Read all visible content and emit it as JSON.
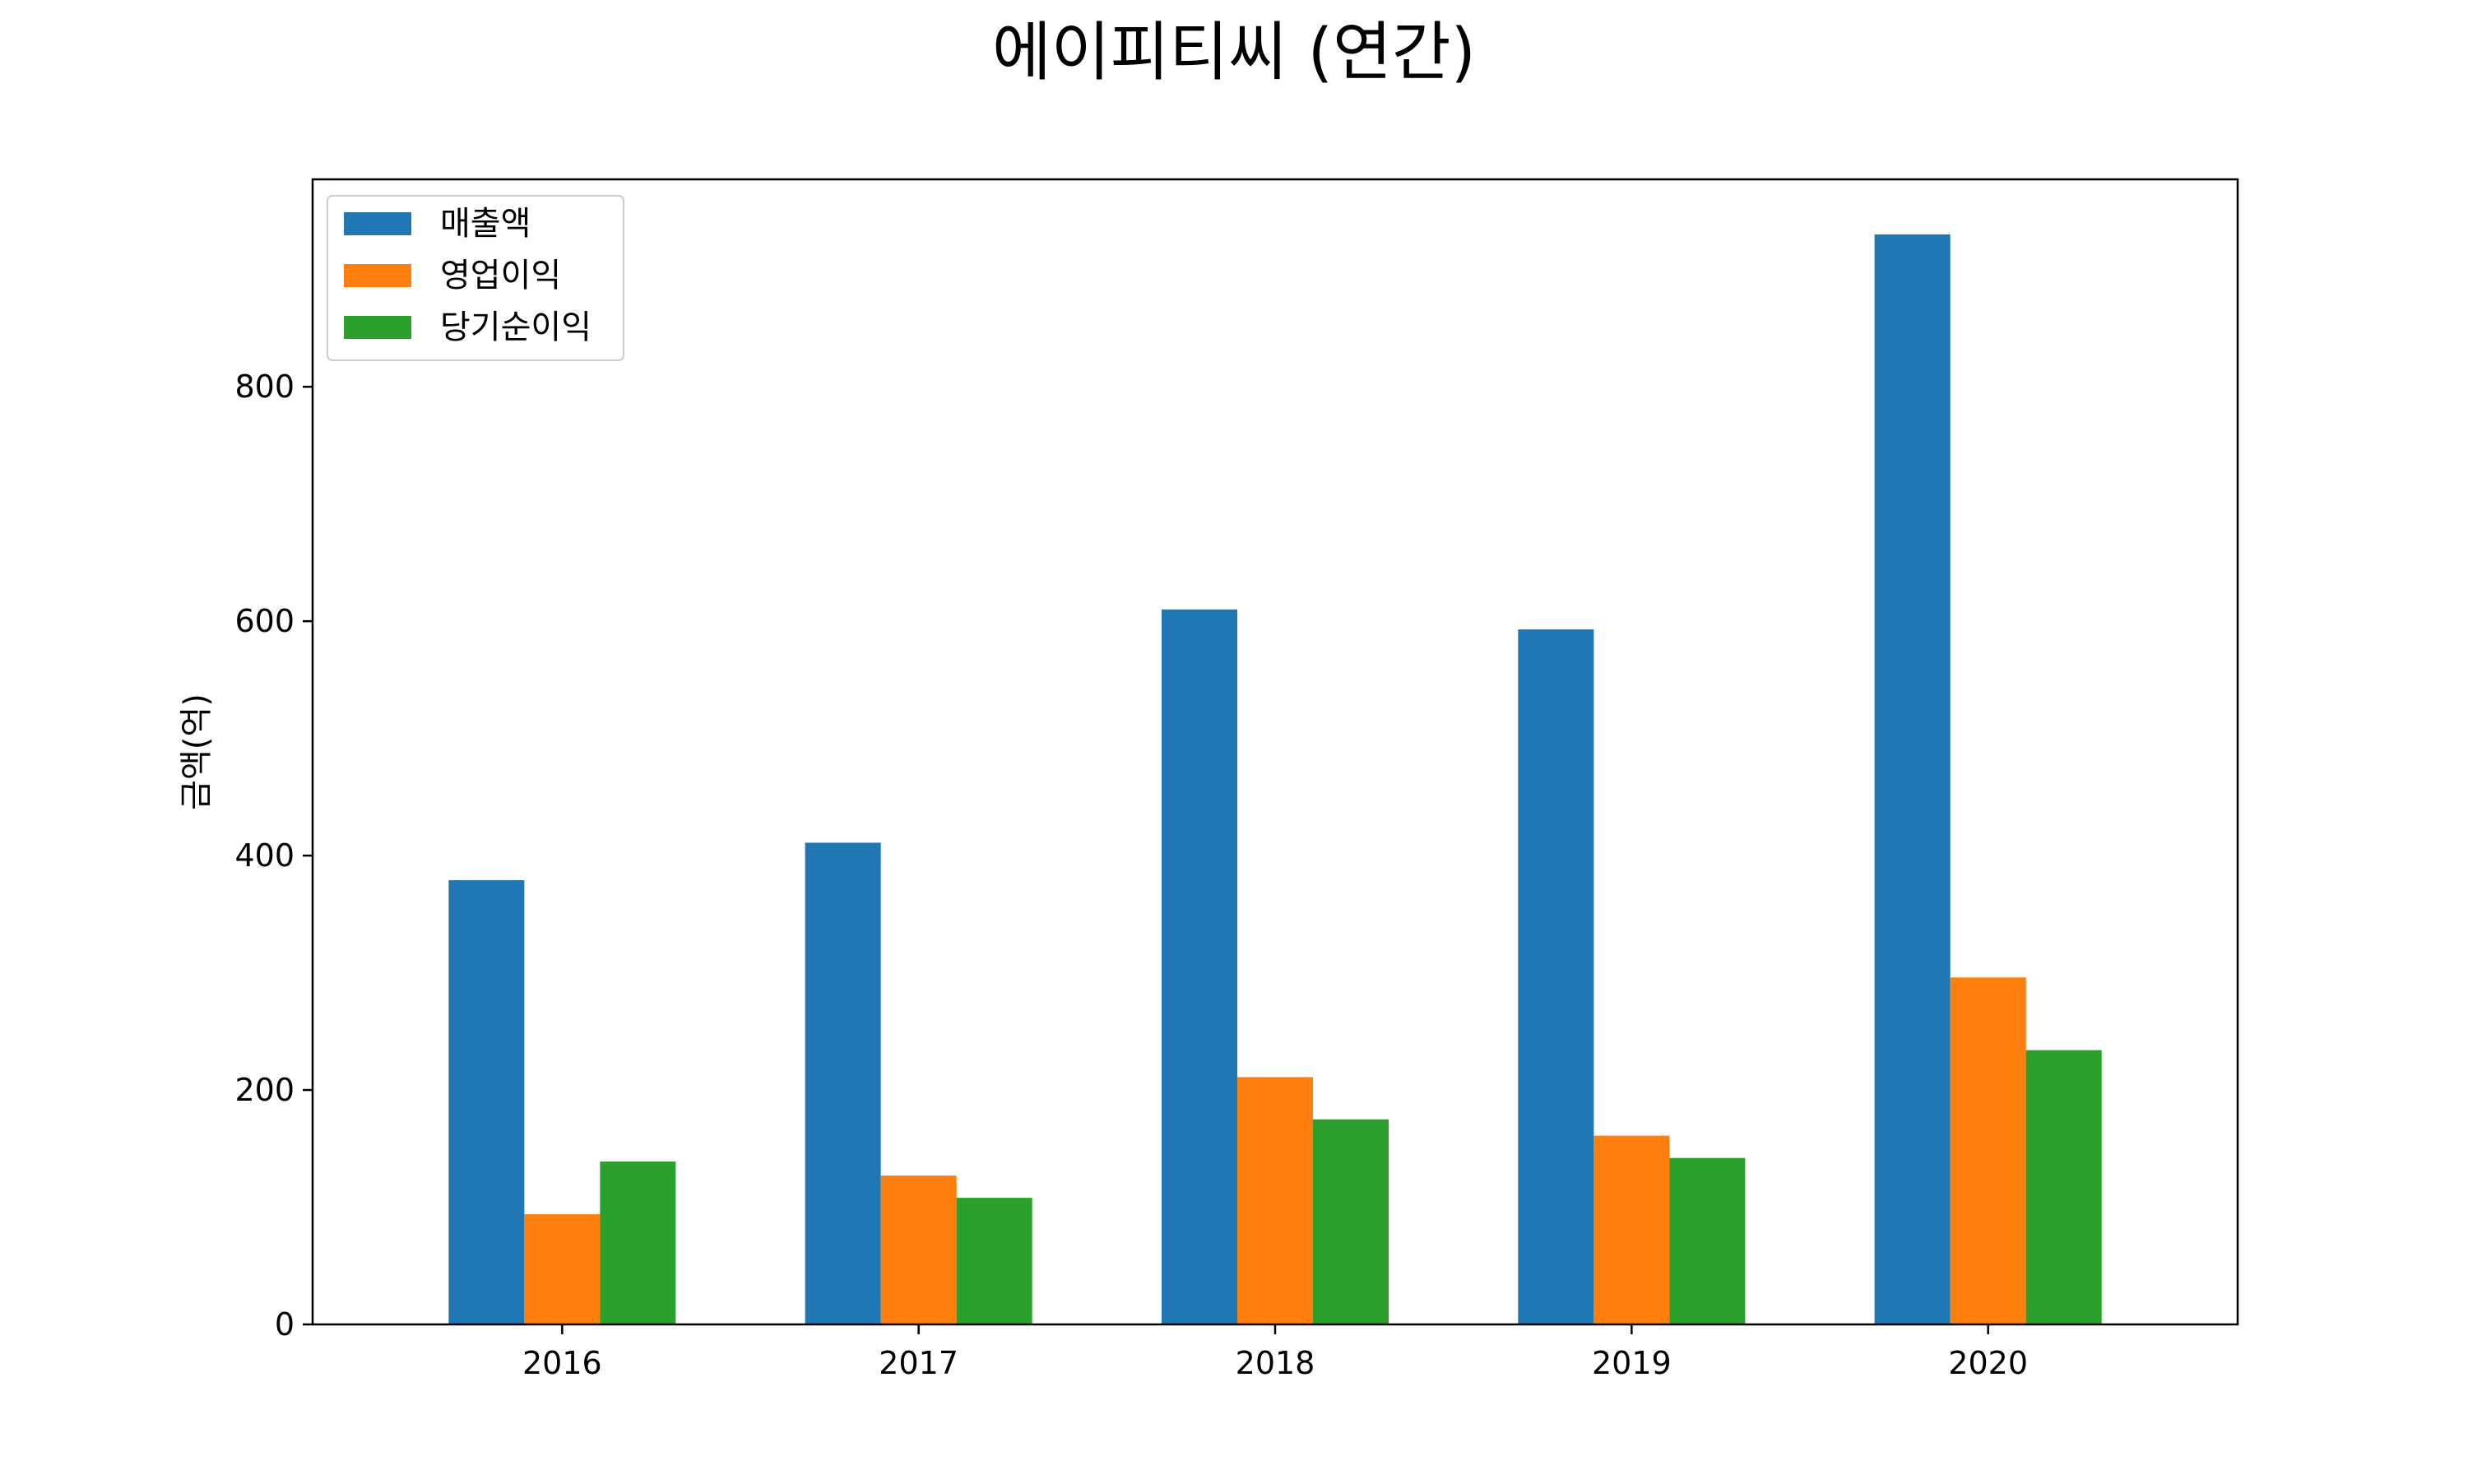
{
  "chart_data": {
    "type": "bar",
    "title": "에이피티씨 (연간)",
    "xlabel": "",
    "ylabel": "금액(억)",
    "categories": [
      "2016",
      "2017",
      "2018",
      "2019",
      "2020"
    ],
    "series": [
      {
        "name": "매출액",
        "color": "#1f77b4",
        "values": [
          379,
          411,
          610,
          593,
          930
        ]
      },
      {
        "name": "영업이익",
        "color": "#ff7f0e",
        "values": [
          94,
          127,
          211,
          161,
          296
        ]
      },
      {
        "name": "당기순이익",
        "color": "#2ca02c",
        "values": [
          139,
          108,
          175,
          142,
          234
        ]
      }
    ],
    "ylim": [
      0,
      977
    ],
    "yticks": [
      0,
      200,
      400,
      600,
      800
    ],
    "grid": false,
    "legend": "top-left"
  }
}
